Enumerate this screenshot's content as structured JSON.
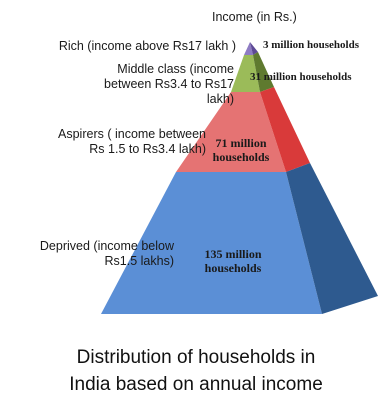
{
  "diagram": {
    "header": "Income (in Rs.)",
    "levels": [
      {
        "label": "Rich (income above Rs17 lakh )",
        "value": "3 million households",
        "color": "#7E57C2"
      },
      {
        "label": "Middle class (income between Rs3.4 to Rs17 lakh)",
        "value": "31 million households",
        "color": "#9BBB59"
      },
      {
        "label": "Aspirers ( income between Rs 1.5 to Rs3.4 lakh)",
        "value": "71 million households",
        "color": "#E36F6F"
      },
      {
        "label": "Deprived (income below Rs1.5 lakhs)",
        "value": "135 million households",
        "color": "#4F81BD"
      }
    ],
    "caption_line1": "Distribution of households in",
    "caption_line2": "India based on annual income"
  }
}
